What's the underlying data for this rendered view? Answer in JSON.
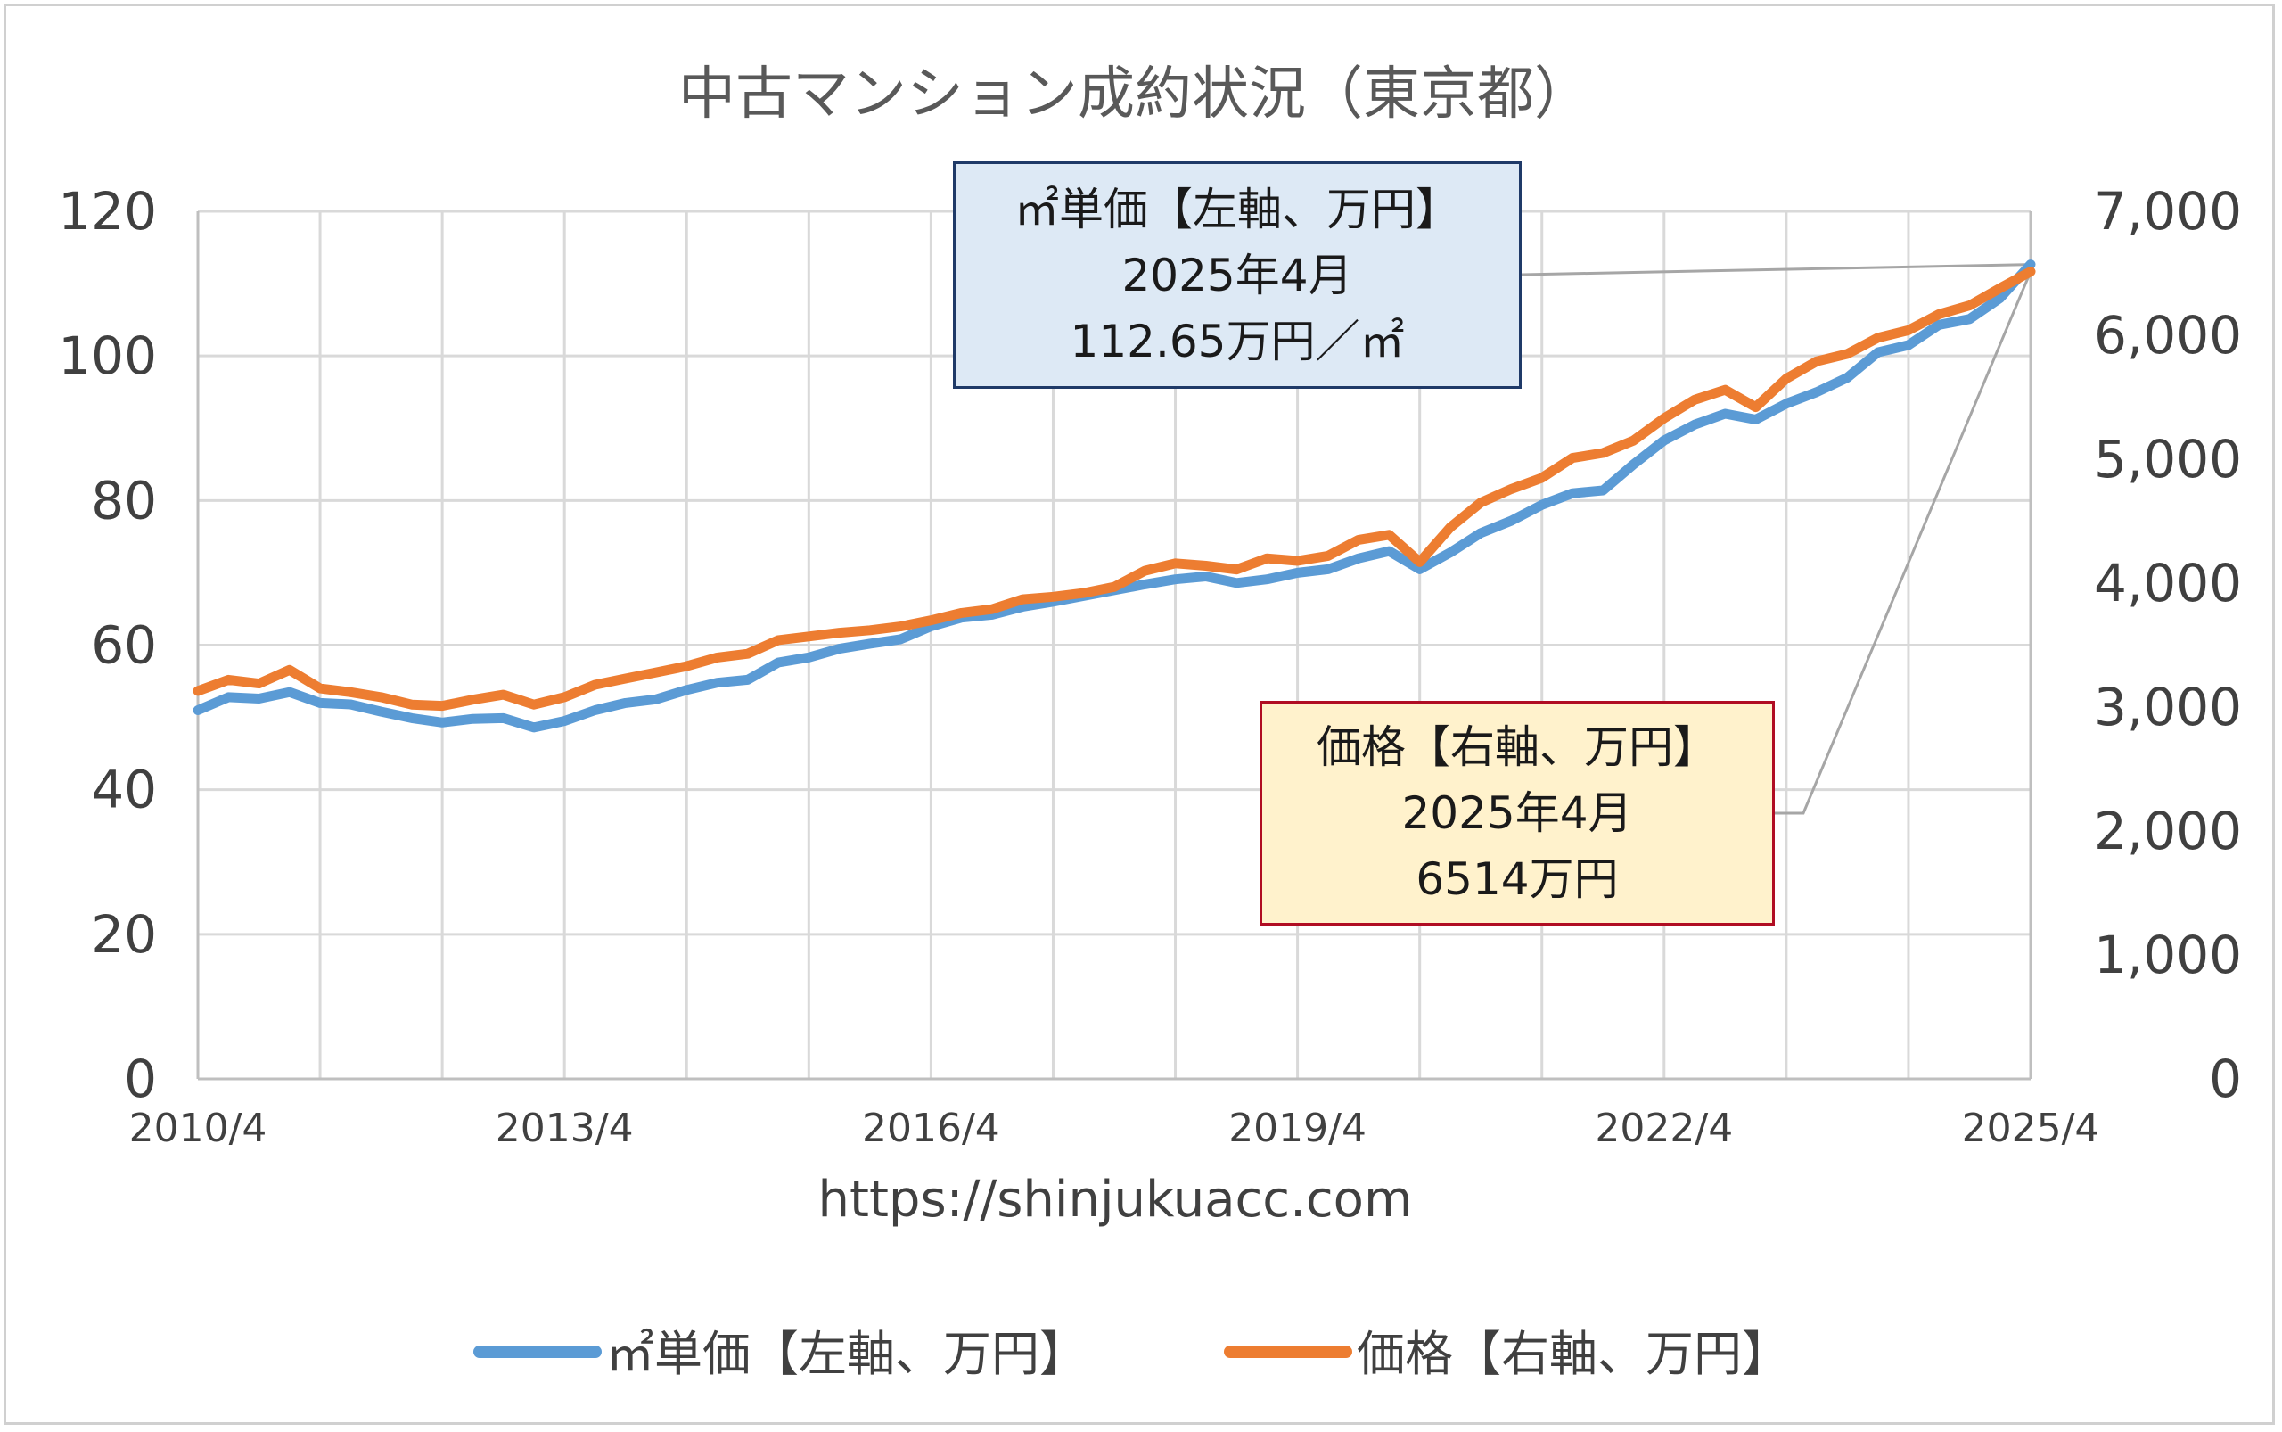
{
  "chart_data": {
    "type": "line",
    "title": "中古マンション成約状況（東京都）",
    "source_text": "https://shinjukuacc.com",
    "x_tick_labels": [
      "2010/4",
      "2013/4",
      "2016/4",
      "2019/4",
      "2022/4",
      "2025/4"
    ],
    "x_range": [
      "2010-04",
      "2025-04"
    ],
    "y_left": {
      "range": [
        0,
        120
      ],
      "ticks": [
        "0",
        "20",
        "40",
        "60",
        "80",
        "100",
        "120"
      ]
    },
    "y_right": {
      "range": [
        0,
        7000
      ],
      "ticks": [
        "0",
        "1,000",
        "2,000",
        "3,000",
        "4,000",
        "5,000",
        "6,000",
        "7,000"
      ]
    },
    "grid": true,
    "legend_position": "bottom",
    "series": [
      {
        "name": "㎡単価【左軸、万円】",
        "axis": "left",
        "color": "#5b9bd5",
        "points": [
          [
            "2010-04",
            51.0
          ],
          [
            "2010-07",
            52.8
          ],
          [
            "2010-10",
            52.6
          ],
          [
            "2011-01",
            53.5
          ],
          [
            "2011-04",
            52.0
          ],
          [
            "2011-07",
            51.8
          ],
          [
            "2011-10",
            50.8
          ],
          [
            "2012-01",
            49.9
          ],
          [
            "2012-04",
            49.3
          ],
          [
            "2012-07",
            49.8
          ],
          [
            "2012-10",
            49.9
          ],
          [
            "2013-01",
            48.6
          ],
          [
            "2013-04",
            49.5
          ],
          [
            "2013-07",
            51.0
          ],
          [
            "2013-10",
            52.0
          ],
          [
            "2014-01",
            52.5
          ],
          [
            "2014-04",
            53.8
          ],
          [
            "2014-07",
            54.8
          ],
          [
            "2014-10",
            55.2
          ],
          [
            "2015-01",
            57.6
          ],
          [
            "2015-04",
            58.3
          ],
          [
            "2015-07",
            59.5
          ],
          [
            "2015-10",
            60.2
          ],
          [
            "2016-01",
            60.8
          ],
          [
            "2016-04",
            62.6
          ],
          [
            "2016-07",
            63.8
          ],
          [
            "2016-10",
            64.2
          ],
          [
            "2017-01",
            65.3
          ],
          [
            "2017-04",
            66.0
          ],
          [
            "2017-07",
            66.8
          ],
          [
            "2017-10",
            67.6
          ],
          [
            "2018-01",
            68.4
          ],
          [
            "2018-04",
            69.1
          ],
          [
            "2018-07",
            69.5
          ],
          [
            "2018-10",
            68.6
          ],
          [
            "2019-01",
            69.1
          ],
          [
            "2019-04",
            70.0
          ],
          [
            "2019-07",
            70.5
          ],
          [
            "2019-10",
            72.0
          ],
          [
            "2020-01",
            73.0
          ],
          [
            "2020-04",
            70.5
          ],
          [
            "2020-07",
            72.8
          ],
          [
            "2020-10",
            75.5
          ],
          [
            "2021-01",
            77.2
          ],
          [
            "2021-04",
            79.4
          ],
          [
            "2021-07",
            81.0
          ],
          [
            "2021-10",
            81.4
          ],
          [
            "2022-01",
            85.0
          ],
          [
            "2022-04",
            88.3
          ],
          [
            "2022-07",
            90.5
          ],
          [
            "2022-10",
            92.0
          ],
          [
            "2023-01",
            91.2
          ],
          [
            "2023-04",
            93.4
          ],
          [
            "2023-07",
            95.0
          ],
          [
            "2023-10",
            97.0
          ],
          [
            "2024-01",
            100.5
          ],
          [
            "2024-04",
            101.5
          ],
          [
            "2024-07",
            104.3
          ],
          [
            "2024-10",
            105.1
          ],
          [
            "2025-01",
            108.0
          ],
          [
            "2025-04",
            112.65
          ]
        ]
      },
      {
        "name": "価格【右軸、万円】",
        "axis": "right",
        "color": "#ed7d31",
        "points": [
          [
            "2010-04",
            3130
          ],
          [
            "2010-07",
            3220
          ],
          [
            "2010-10",
            3190
          ],
          [
            "2011-01",
            3300
          ],
          [
            "2011-04",
            3150
          ],
          [
            "2011-07",
            3120
          ],
          [
            "2011-10",
            3080
          ],
          [
            "2012-01",
            3020
          ],
          [
            "2012-04",
            3010
          ],
          [
            "2012-07",
            3060
          ],
          [
            "2012-10",
            3100
          ],
          [
            "2013-01",
            3020
          ],
          [
            "2013-04",
            3080
          ],
          [
            "2013-07",
            3180
          ],
          [
            "2013-10",
            3230
          ],
          [
            "2014-01",
            3280
          ],
          [
            "2014-04",
            3330
          ],
          [
            "2014-07",
            3400
          ],
          [
            "2014-10",
            3430
          ],
          [
            "2015-01",
            3540
          ],
          [
            "2015-04",
            3570
          ],
          [
            "2015-07",
            3600
          ],
          [
            "2015-10",
            3620
          ],
          [
            "2016-01",
            3650
          ],
          [
            "2016-04",
            3700
          ],
          [
            "2016-07",
            3760
          ],
          [
            "2016-10",
            3790
          ],
          [
            "2017-01",
            3870
          ],
          [
            "2017-04",
            3890
          ],
          [
            "2017-07",
            3920
          ],
          [
            "2017-10",
            3970
          ],
          [
            "2018-01",
            4100
          ],
          [
            "2018-04",
            4160
          ],
          [
            "2018-07",
            4140
          ],
          [
            "2018-10",
            4110
          ],
          [
            "2019-01",
            4200
          ],
          [
            "2019-04",
            4180
          ],
          [
            "2019-07",
            4220
          ],
          [
            "2019-10",
            4350
          ],
          [
            "2020-01",
            4390
          ],
          [
            "2020-04",
            4170
          ],
          [
            "2020-07",
            4450
          ],
          [
            "2020-10",
            4650
          ],
          [
            "2021-01",
            4760
          ],
          [
            "2021-04",
            4850
          ],
          [
            "2021-07",
            5010
          ],
          [
            "2021-10",
            5050
          ],
          [
            "2022-01",
            5150
          ],
          [
            "2022-04",
            5330
          ],
          [
            "2022-07",
            5480
          ],
          [
            "2022-10",
            5560
          ],
          [
            "2023-01",
            5420
          ],
          [
            "2023-04",
            5650
          ],
          [
            "2023-07",
            5790
          ],
          [
            "2023-10",
            5850
          ],
          [
            "2024-01",
            5980
          ],
          [
            "2024-04",
            6040
          ],
          [
            "2024-07",
            6170
          ],
          [
            "2024-10",
            6240
          ],
          [
            "2025-01",
            6380
          ],
          [
            "2025-04",
            6514
          ]
        ]
      }
    ],
    "annotations": [
      {
        "series": "㎡単価【左軸、万円】",
        "lines": [
          "㎡単価【左軸、万円】",
          "2025年4月",
          "112.65万円／㎡"
        ],
        "fill": "#dde9f5",
        "border": "#1f3a68"
      },
      {
        "series": "価格【右軸、万円】",
        "lines": [
          "価格【右軸、万円】",
          "2025年4月",
          "6514万円"
        ],
        "fill": "#fff2cc",
        "border": "#b00d23"
      }
    ]
  }
}
